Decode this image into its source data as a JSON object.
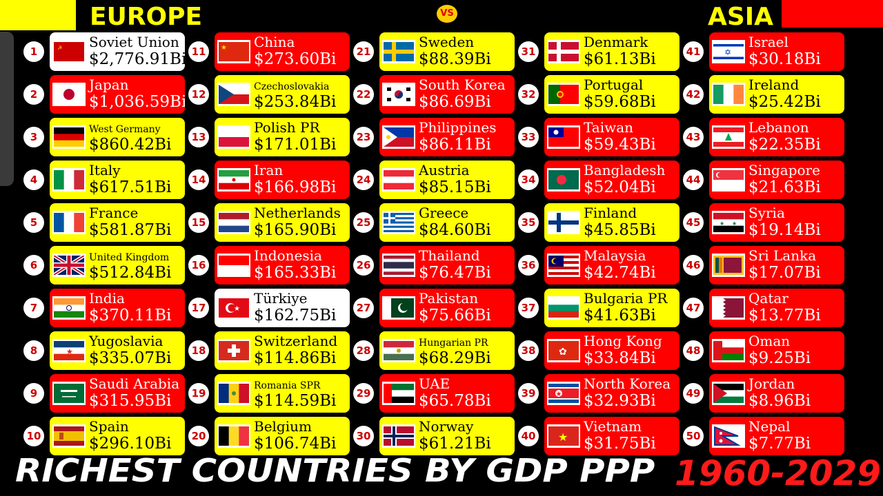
{
  "header": {
    "left_label": "EUROPE",
    "right_label": "ASIA",
    "vs_label": "VS"
  },
  "footer": {
    "title": "RICHEST COUNTRIES BY GDP PPP",
    "years": "1960-2029"
  },
  "colors": {
    "red": "#ff0000",
    "yellow": "#ffff00",
    "white": "#ffffff",
    "background": "#000000"
  },
  "rankings": [
    {
      "rank": "1",
      "name": "Soviet Union",
      "value": "$2,776.91Bi",
      "card_color": "white",
      "flag": "soviet-union"
    },
    {
      "rank": "2",
      "name": "Japan",
      "value": "$1,036.59Bi",
      "card_color": "red",
      "flag": "japan"
    },
    {
      "rank": "3",
      "name": "West Germany",
      "value": "$860.42Bi",
      "card_color": "yellow",
      "flag": "west-germany",
      "small": true
    },
    {
      "rank": "4",
      "name": "Italy",
      "value": "$617.51Bi",
      "card_color": "yellow",
      "flag": "italy"
    },
    {
      "rank": "5",
      "name": "France",
      "value": "$581.87Bi",
      "card_color": "yellow",
      "flag": "france"
    },
    {
      "rank": "6",
      "name": "United Kingdom",
      "value": "$512.84Bi",
      "card_color": "yellow",
      "flag": "united-kingdom",
      "small": true
    },
    {
      "rank": "7",
      "name": "India",
      "value": "$370.11Bi",
      "card_color": "red",
      "flag": "india"
    },
    {
      "rank": "8",
      "name": "Yugoslavia",
      "value": "$335.07Bi",
      "card_color": "yellow",
      "flag": "yugoslavia"
    },
    {
      "rank": "9",
      "name": "Saudi Arabia",
      "value": "$315.95Bi",
      "card_color": "red",
      "flag": "saudi-arabia"
    },
    {
      "rank": "10",
      "name": "Spain",
      "value": "$296.10Bi",
      "card_color": "yellow",
      "flag": "spain"
    },
    {
      "rank": "11",
      "name": "China",
      "value": "$273.60Bi",
      "card_color": "red",
      "flag": "china"
    },
    {
      "rank": "12",
      "name": "Czechoslovakia",
      "value": "$253.84Bi",
      "card_color": "yellow",
      "flag": "czechoslovakia",
      "small": true
    },
    {
      "rank": "13",
      "name": "Polish PR",
      "value": "$171.01Bi",
      "card_color": "yellow",
      "flag": "poland"
    },
    {
      "rank": "14",
      "name": "Iran",
      "value": "$166.98Bi",
      "card_color": "red",
      "flag": "iran"
    },
    {
      "rank": "15",
      "name": "Netherlands",
      "value": "$165.90Bi",
      "card_color": "yellow",
      "flag": "netherlands"
    },
    {
      "rank": "16",
      "name": "Indonesia",
      "value": "$165.33Bi",
      "card_color": "red",
      "flag": "indonesia"
    },
    {
      "rank": "17",
      "name": "Türkiye",
      "value": "$162.75Bi",
      "card_color": "white",
      "flag": "turkiye"
    },
    {
      "rank": "18",
      "name": "Switzerland",
      "value": "$114.86Bi",
      "card_color": "yellow",
      "flag": "switzerland"
    },
    {
      "rank": "19",
      "name": "Romania SPR",
      "value": "$114.59Bi",
      "card_color": "yellow",
      "flag": "romania",
      "small": true
    },
    {
      "rank": "20",
      "name": "Belgium",
      "value": "$106.74Bi",
      "card_color": "yellow",
      "flag": "belgium"
    },
    {
      "rank": "21",
      "name": "Sweden",
      "value": "$88.39Bi",
      "card_color": "yellow",
      "flag": "sweden"
    },
    {
      "rank": "22",
      "name": "South Korea",
      "value": "$86.69Bi",
      "card_color": "red",
      "flag": "south-korea"
    },
    {
      "rank": "23",
      "name": "Philippines",
      "value": "$86.11Bi",
      "card_color": "red",
      "flag": "philippines"
    },
    {
      "rank": "24",
      "name": "Austria",
      "value": "$85.15Bi",
      "card_color": "yellow",
      "flag": "austria"
    },
    {
      "rank": "25",
      "name": "Greece",
      "value": "$84.60Bi",
      "card_color": "yellow",
      "flag": "greece"
    },
    {
      "rank": "26",
      "name": "Thailand",
      "value": "$76.47Bi",
      "card_color": "red",
      "flag": "thailand"
    },
    {
      "rank": "27",
      "name": "Pakistan",
      "value": "$75.66Bi",
      "card_color": "red",
      "flag": "pakistan"
    },
    {
      "rank": "28",
      "name": "Hungarian PR",
      "value": "$68.29Bi",
      "card_color": "yellow",
      "flag": "hungary",
      "small": true
    },
    {
      "rank": "29",
      "name": "UAE",
      "value": "$65.78Bi",
      "card_color": "red",
      "flag": "uae"
    },
    {
      "rank": "30",
      "name": "Norway",
      "value": "$61.21Bi",
      "card_color": "yellow",
      "flag": "norway"
    },
    {
      "rank": "31",
      "name": "Denmark",
      "value": "$61.13Bi",
      "card_color": "yellow",
      "flag": "denmark"
    },
    {
      "rank": "32",
      "name": "Portugal",
      "value": "$59.68Bi",
      "card_color": "yellow",
      "flag": "portugal"
    },
    {
      "rank": "33",
      "name": "Taiwan",
      "value": "$59.43Bi",
      "card_color": "red",
      "flag": "taiwan"
    },
    {
      "rank": "34",
      "name": "Bangladesh",
      "value": "$52.04Bi",
      "card_color": "red",
      "flag": "bangladesh"
    },
    {
      "rank": "35",
      "name": "Finland",
      "value": "$45.85Bi",
      "card_color": "yellow",
      "flag": "finland"
    },
    {
      "rank": "36",
      "name": "Malaysia",
      "value": "$42.74Bi",
      "card_color": "red",
      "flag": "malaysia"
    },
    {
      "rank": "37",
      "name": "Bulgaria PR",
      "value": "$41.63Bi",
      "card_color": "yellow",
      "flag": "bulgaria"
    },
    {
      "rank": "38",
      "name": "Hong Kong",
      "value": "$33.84Bi",
      "card_color": "red",
      "flag": "hong-kong"
    },
    {
      "rank": "39",
      "name": "North Korea",
      "value": "$32.93Bi",
      "card_color": "red",
      "flag": "north-korea"
    },
    {
      "rank": "40",
      "name": "Vietnam",
      "value": "$31.75Bi",
      "card_color": "red",
      "flag": "vietnam"
    },
    {
      "rank": "41",
      "name": "Israel",
      "value": "$30.18Bi",
      "card_color": "red",
      "flag": "israel"
    },
    {
      "rank": "42",
      "name": "Ireland",
      "value": "$25.42Bi",
      "card_color": "yellow",
      "flag": "ireland"
    },
    {
      "rank": "43",
      "name": "Lebanon",
      "value": "$22.35Bi",
      "card_color": "red",
      "flag": "lebanon"
    },
    {
      "rank": "44",
      "name": "Singapore",
      "value": "$21.63Bi",
      "card_color": "red",
      "flag": "singapore"
    },
    {
      "rank": "45",
      "name": "Syria",
      "value": "$19.14Bi",
      "card_color": "red",
      "flag": "syria"
    },
    {
      "rank": "46",
      "name": "Sri Lanka",
      "value": "$17.07Bi",
      "card_color": "red",
      "flag": "sri-lanka"
    },
    {
      "rank": "47",
      "name": "Qatar",
      "value": "$13.77Bi",
      "card_color": "red",
      "flag": "qatar"
    },
    {
      "rank": "48",
      "name": "Oman",
      "value": "$9.25Bi",
      "card_color": "red",
      "flag": "oman"
    },
    {
      "rank": "49",
      "name": "Jordan",
      "value": "$8.96Bi",
      "card_color": "red",
      "flag": "jordan"
    },
    {
      "rank": "50",
      "name": "Nepal",
      "value": "$7.77Bi",
      "card_color": "red",
      "flag": "nepal"
    }
  ]
}
